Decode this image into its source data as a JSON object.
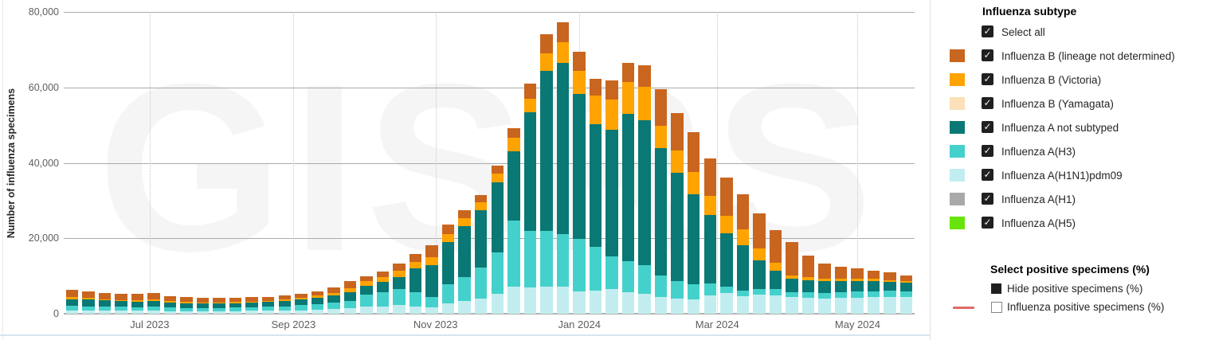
{
  "chart_data": {
    "type": "bar",
    "stacked": true,
    "title": "",
    "watermark": "GISRS",
    "ylabel": "Number of influenza specimens",
    "ylim": [
      0,
      80000
    ],
    "y_ticks": [
      0,
      20000,
      40000,
      60000,
      80000
    ],
    "y_tick_labels": [
      "0",
      "20,000",
      "40,000",
      "60,000",
      "80,000"
    ],
    "x_unit": "week",
    "week_count": 52,
    "x_tick_labels": [
      "Jul 2023",
      "Sep 2023",
      "Nov 2023",
      "Jan 2024",
      "Mar 2024",
      "May 2024"
    ],
    "x_tick_positions": [
      0.101,
      0.27,
      0.437,
      0.606,
      0.768,
      0.933
    ],
    "grid": true,
    "legend_position": "right-panel",
    "series": [
      {
        "name": "Influenza A(H5)",
        "color": "#69E40A",
        "values": [
          0,
          0,
          0,
          0,
          0,
          0,
          0,
          0,
          0,
          0,
          0,
          0,
          0,
          0,
          0,
          0,
          0,
          0,
          0,
          0,
          0,
          0,
          0,
          0,
          0,
          0,
          0,
          0,
          0,
          0,
          0,
          0,
          0,
          0,
          0,
          0,
          0,
          0,
          0,
          0,
          0,
          0,
          0,
          0,
          0,
          0,
          0,
          0,
          0,
          0,
          0,
          0
        ]
      },
      {
        "name": "Influenza A(H1)",
        "color": "#A9A9A9",
        "values": [
          0,
          0,
          0,
          0,
          0,
          0,
          0,
          0,
          0,
          0,
          0,
          0,
          0,
          0,
          0,
          0,
          0,
          0,
          0,
          0,
          0,
          0,
          0,
          0,
          0,
          0,
          0,
          0,
          0,
          0,
          0,
          0,
          0,
          0,
          0,
          0,
          0,
          0,
          0,
          0,
          0,
          0,
          0,
          0,
          0,
          0,
          0,
          0,
          0,
          0,
          0,
          0
        ]
      },
      {
        "name": "Influenza A(H1N1)pdm09",
        "color": "#C2EDF0",
        "values": [
          900,
          850,
          800,
          750,
          750,
          800,
          700,
          650,
          650,
          650,
          700,
          750,
          800,
          850,
          950,
          1050,
          1200,
          1400,
          1800,
          2000,
          2250,
          1900,
          1600,
          2700,
          3300,
          4100,
          5200,
          7200,
          7000,
          7200,
          7200,
          5900,
          6100,
          6500,
          5700,
          5200,
          4500,
          4000,
          3700,
          4800,
          5400,
          4700,
          5100,
          4900,
          4400,
          4200,
          4100,
          4200,
          4300,
          4400,
          4500,
          4400
        ]
      },
      {
        "name": "Influenza A(H3)",
        "color": "#45D1CB",
        "values": [
          1200,
          1150,
          1100,
          1050,
          1000,
          1050,
          900,
          850,
          850,
          850,
          900,
          950,
          1000,
          1150,
          1300,
          1500,
          1700,
          1900,
          3300,
          3700,
          4200,
          3800,
          2900,
          5200,
          6500,
          8200,
          11000,
          17600,
          15000,
          14800,
          13900,
          14000,
          11600,
          8600,
          8300,
          7600,
          5700,
          4700,
          4100,
          3300,
          1800,
          1400,
          1550,
          1600,
          1400,
          1400,
          1450,
          1500,
          1550,
          1600,
          1630,
          1550
        ]
      },
      {
        "name": "Influenza A not subtyped",
        "color": "#0A7874",
        "values": [
          1800,
          1750,
          1600,
          1550,
          1500,
          1600,
          1400,
          1300,
          1250,
          1200,
          1200,
          1250,
          1300,
          1400,
          1450,
          1650,
          1900,
          2350,
          2400,
          2700,
          3250,
          6300,
          8400,
          11200,
          13500,
          15200,
          18600,
          18300,
          31400,
          42300,
          45300,
          38400,
          32500,
          33700,
          39000,
          38600,
          33700,
          28700,
          23900,
          18000,
          14200,
          12000,
          7600,
          5000,
          3400,
          3300,
          3100,
          2900,
          2800,
          2700,
          2330,
          2300
        ]
      },
      {
        "name": "Influenza B (Yamagata)",
        "color": "#FBE0B8",
        "values": [
          0,
          0,
          0,
          0,
          0,
          0,
          0,
          0,
          0,
          0,
          0,
          0,
          0,
          0,
          0,
          0,
          0,
          0,
          0,
          0,
          0,
          0,
          0,
          0,
          0,
          0,
          0,
          0,
          0,
          0,
          0,
          0,
          0,
          0,
          0,
          0,
          0,
          0,
          0,
          0,
          0,
          0,
          0,
          0,
          0,
          0,
          0,
          0,
          0,
          0,
          0,
          0
        ]
      },
      {
        "name": "Influenza B (Victoria)",
        "color": "#FEA300",
        "values": [
          500,
          450,
          400,
          350,
          350,
          400,
          300,
          300,
          300,
          300,
          300,
          300,
          300,
          350,
          450,
          600,
          800,
          1150,
          1100,
          1300,
          1600,
          1700,
          2100,
          2100,
          2100,
          2100,
          2400,
          3500,
          3500,
          4700,
          5600,
          6100,
          7700,
          8000,
          8400,
          8800,
          6000,
          5800,
          5900,
          5200,
          4650,
          4200,
          3150,
          2000,
          1000,
          900,
          750,
          600,
          550,
          500,
          490,
          450
        ]
      },
      {
        "name": "Influenza B (lineage not determined)",
        "color": "#C8651F",
        "values": [
          1900,
          1800,
          1700,
          1600,
          1600,
          1650,
          1400,
          1300,
          1250,
          1200,
          1200,
          1150,
          1100,
          1050,
          1150,
          1200,
          1300,
          1900,
          1400,
          1600,
          2100,
          2100,
          3100,
          2500,
          2100,
          1900,
          2100,
          2500,
          4200,
          5200,
          5300,
          5000,
          4400,
          5000,
          5100,
          5600,
          9600,
          10000,
          10600,
          9900,
          10150,
          9400,
          9200,
          8600,
          8800,
          5700,
          4000,
          3300,
          2800,
          2300,
          1950,
          1500
        ]
      }
    ]
  },
  "subtype_filter": {
    "title": "Influenza subtype",
    "items": [
      {
        "label": "Select all",
        "checked": true,
        "swatch": null
      },
      {
        "label": "Influenza B (lineage not determined)",
        "checked": true,
        "swatch": "#C8651F"
      },
      {
        "label": "Influenza B (Victoria)",
        "checked": true,
        "swatch": "#FEA300"
      },
      {
        "label": "Influenza B (Yamagata)",
        "checked": true,
        "swatch": "#FBE0B8"
      },
      {
        "label": "Influenza A not subtyped",
        "checked": true,
        "swatch": "#0A7874"
      },
      {
        "label": "Influenza A(H3)",
        "checked": true,
        "swatch": "#45D1CB"
      },
      {
        "label": "Influenza A(H1N1)pdm09",
        "checked": true,
        "swatch": "#C2EDF0"
      },
      {
        "label": "Influenza A(H1)",
        "checked": true,
        "swatch": "#A9A9A9"
      },
      {
        "label": "Influenza A(H5)",
        "checked": true,
        "swatch": "#69E40A"
      }
    ]
  },
  "positive_filter": {
    "title": "Select positive specimens (%)",
    "items": [
      {
        "label": "Hide positive specimens (%)",
        "style": "filled-square"
      },
      {
        "label": "Influenza positive specimens (%)",
        "style": "unchecked",
        "line_color": "#DF6A66"
      }
    ]
  },
  "colors": {
    "grid": "#ABABAB",
    "grid_dotted": "#C9C7C5",
    "axis_text": "#605E5C",
    "label_text": "#252423",
    "checkbox": "#202020",
    "positive_line": "#DF6A66"
  }
}
